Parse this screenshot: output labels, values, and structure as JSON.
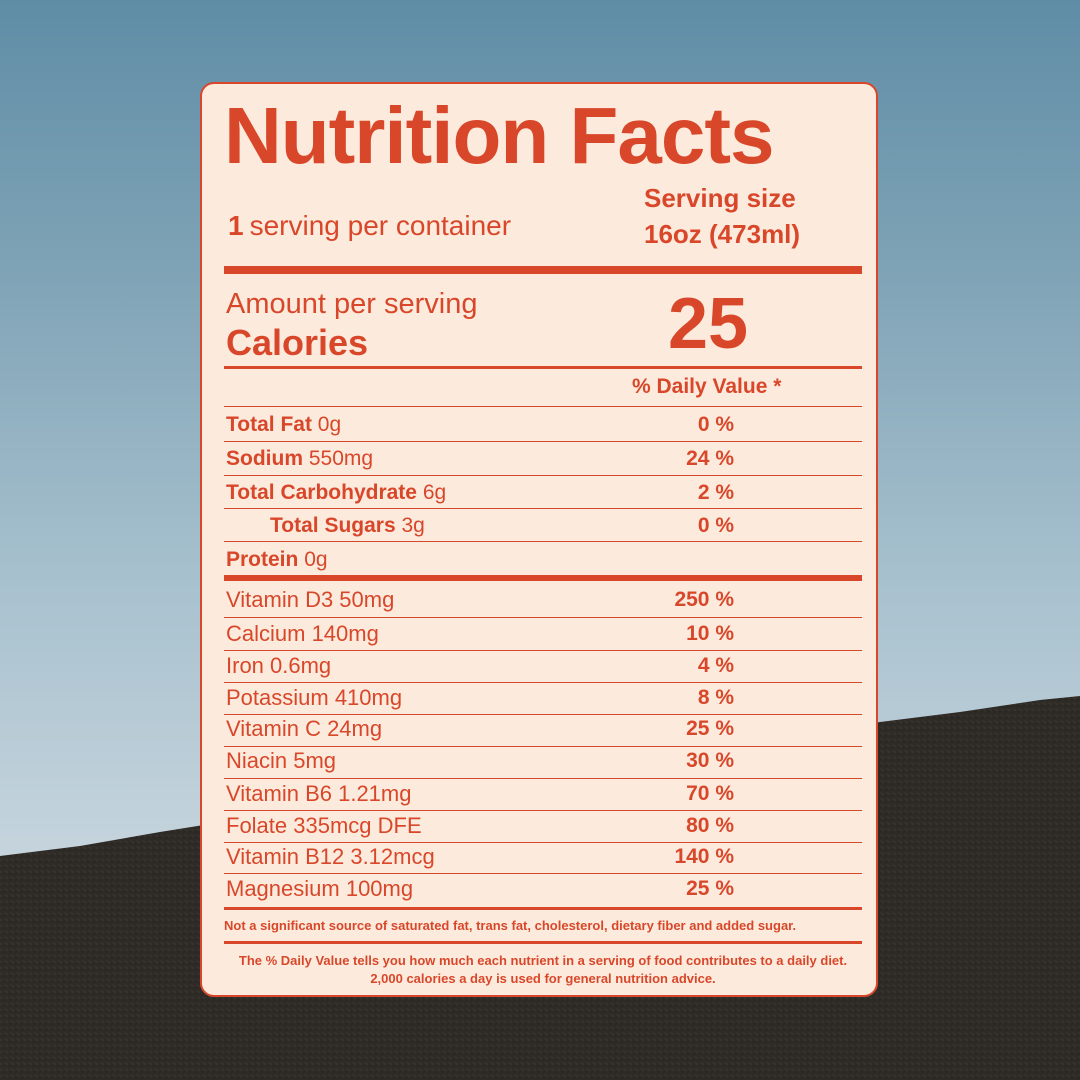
{
  "label": {
    "title": "Nutrition Facts",
    "servings_count": "1",
    "servings_text": "serving per container",
    "serving_size_label": "Serving size",
    "serving_size_value": "16oz (473ml)",
    "amount_per_serving": "Amount per serving",
    "calories_label": "Calories",
    "calories_value": "25",
    "daily_value_header": "% Daily Value *",
    "nutrients": [
      {
        "name": "Total Fat",
        "amount": "0g",
        "dv": "0 %"
      },
      {
        "name": "Sodium",
        "amount": "550mg",
        "dv": "24 %"
      },
      {
        "name": "Total Carbohydrate",
        "amount": "6g",
        "dv": "2 %"
      },
      {
        "name": "Total Sugars",
        "amount": "3g",
        "dv": "0 %"
      },
      {
        "name": "Protein",
        "amount": "0g",
        "dv": ""
      }
    ],
    "vitamins": [
      {
        "label": "Vitamin D3 50mg",
        "dv": "250 %"
      },
      {
        "label": "Calcium 140mg",
        "dv": "10 %"
      },
      {
        "label": "Iron 0.6mg",
        "dv": "4 %"
      },
      {
        "label": "Potassium  410mg",
        "dv": "8 %"
      },
      {
        "label": "Vitamin C  24mg",
        "dv": "25 %"
      },
      {
        "label": "Niacin 5mg",
        "dv": "30 %"
      },
      {
        "label": "Vitamin B6  1.21mg",
        "dv": "70 %"
      },
      {
        "label": "Folate 335mcg DFE",
        "dv": "80 %"
      },
      {
        "label": "Vitamin B12  3.12mcg",
        "dv": "140 %"
      },
      {
        "label": "Magnesium 100mg",
        "dv": "25 %"
      }
    ],
    "footnote_1": "Not a significant source of saturated fat, trans fat, cholesterol, dietary fiber and added sugar.",
    "footnote_2": "The % Daily Value tells you how much each nutrient in a serving of food contributes to a daily diet. 2,000 calories a day is used for general nutrition advice."
  },
  "colors": {
    "label_text": "#d9472b",
    "label_background": "#fcebdc",
    "sky": "#7fa3b6",
    "ground": "#2e2a26"
  }
}
